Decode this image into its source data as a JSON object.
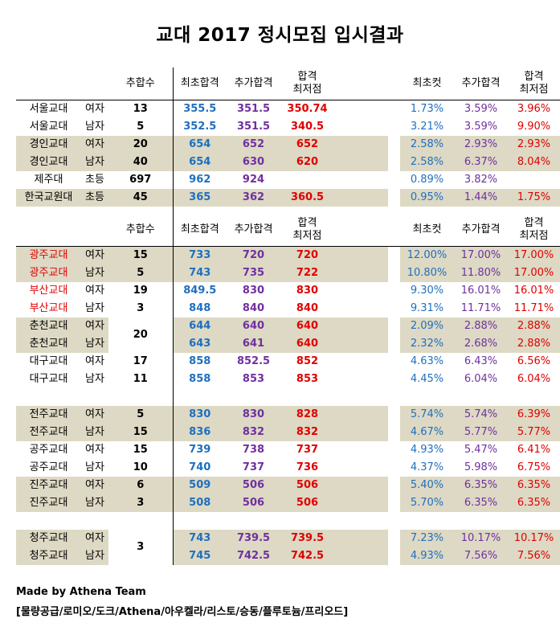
{
  "title": "교대 2017 정시모집 입시결과",
  "headers": {
    "count": "추합수",
    "first": "최초합격",
    "extra": "추가합격",
    "min_line1": "합격",
    "min_line2": "최저점",
    "cut_first": "최초컷",
    "cut_extra": "추가합격",
    "cut_min_line1": "합격",
    "cut_min_line2": "최저점"
  },
  "colors": {
    "blue": "#1f6fbf",
    "purple": "#7030a0",
    "red": "#e00000",
    "shade": "#ddd9c4"
  },
  "section1": [
    {
      "name": "서울교대",
      "kind": "여자",
      "count": "13",
      "first": "355.5",
      "extra": "351.5",
      "min": "350.74",
      "c1": "1.73%",
      "c2": "3.59%",
      "c3": "3.96%"
    },
    {
      "name": "서울교대",
      "kind": "남자",
      "count": "5",
      "first": "352.5",
      "extra": "351.5",
      "min": "340.5",
      "c1": "3.21%",
      "c2": "3.59%",
      "c3": "9.90%"
    },
    {
      "name": "경인교대",
      "kind": "여자",
      "count": "20",
      "first": "654",
      "extra": "652",
      "min": "652",
      "c1": "2.58%",
      "c2": "2.93%",
      "c3": "2.93%"
    },
    {
      "name": "경인교대",
      "kind": "남자",
      "count": "40",
      "first": "654",
      "extra": "630",
      "min": "620",
      "c1": "2.58%",
      "c2": "6.37%",
      "c3": "8.04%"
    },
    {
      "name": "제주대",
      "kind": "초등",
      "count": "697",
      "first": "962",
      "extra": "924",
      "min": "",
      "c1": "0.89%",
      "c2": "3.82%",
      "c3": ""
    },
    {
      "name": "한국교원대",
      "kind": "초등",
      "count": "45",
      "first": "365",
      "extra": "362",
      "min": "360.5",
      "c1": "0.95%",
      "c2": "1.44%",
      "c3": "1.75%"
    }
  ],
  "section2": [
    {
      "name": "광주교대",
      "kind": "여자",
      "count": "15",
      "first": "733",
      "extra": "720",
      "min": "720",
      "c1": "12.00%",
      "c2": "17.00%",
      "c3": "17.00%"
    },
    {
      "name": "광주교대",
      "kind": "남자",
      "count": "5",
      "first": "743",
      "extra": "735",
      "min": "722",
      "c1": "10.80%",
      "c2": "11.80%",
      "c3": "17.00%"
    },
    {
      "name": "부산교대",
      "kind": "여자",
      "count": "19",
      "first": "849.5",
      "extra": "830",
      "min": "830",
      "c1": "9.30%",
      "c2": "16.01%",
      "c3": "16.01%"
    },
    {
      "name": "부산교대",
      "kind": "남자",
      "count": "3",
      "first": "848",
      "extra": "840",
      "min": "840",
      "c1": "9.31%",
      "c2": "11.71%",
      "c3": "11.71%"
    },
    {
      "name": "춘천교대",
      "kind": "여자",
      "count": "20",
      "first": "644",
      "extra": "640",
      "min": "640",
      "c1": "2.09%",
      "c2": "2.88%",
      "c3": "2.88%"
    },
    {
      "name": "춘천교대",
      "kind": "남자",
      "count": "",
      "first": "643",
      "extra": "641",
      "min": "640",
      "c1": "2.32%",
      "c2": "2.68%",
      "c3": "2.88%"
    },
    {
      "name": "대구교대",
      "kind": "여자",
      "count": "17",
      "first": "858",
      "extra": "852.5",
      "min": "852",
      "c1": "4.63%",
      "c2": "6.43%",
      "c3": "6.56%"
    },
    {
      "name": "대구교대",
      "kind": "남자",
      "count": "11",
      "first": "858",
      "extra": "853",
      "min": "853",
      "c1": "4.45%",
      "c2": "6.04%",
      "c3": "6.04%"
    },
    {
      "name": "전주교대",
      "kind": "여자",
      "count": "5",
      "first": "830",
      "extra": "830",
      "min": "828",
      "c1": "5.74%",
      "c2": "5.74%",
      "c3": "6.39%"
    },
    {
      "name": "전주교대",
      "kind": "남자",
      "count": "15",
      "first": "836",
      "extra": "832",
      "min": "832",
      "c1": "4.67%",
      "c2": "5.77%",
      "c3": "5.77%"
    },
    {
      "name": "공주교대",
      "kind": "여자",
      "count": "15",
      "first": "739",
      "extra": "738",
      "min": "737",
      "c1": "4.93%",
      "c2": "5.47%",
      "c3": "6.41%"
    },
    {
      "name": "공주교대",
      "kind": "남자",
      "count": "10",
      "first": "740",
      "extra": "737",
      "min": "736",
      "c1": "4.37%",
      "c2": "5.98%",
      "c3": "6.75%"
    },
    {
      "name": "진주교대",
      "kind": "여자",
      "count": "6",
      "first": "509",
      "extra": "506",
      "min": "506",
      "c1": "5.40%",
      "c2": "6.35%",
      "c3": "6.35%"
    },
    {
      "name": "진주교대",
      "kind": "남자",
      "count": "3",
      "first": "508",
      "extra": "506",
      "min": "506",
      "c1": "5.70%",
      "c2": "6.35%",
      "c3": "6.35%"
    },
    {
      "name": "청주교대",
      "kind": "여자",
      "count": "3",
      "first": "743",
      "extra": "739.5",
      "min": "739.5",
      "c1": "7.23%",
      "c2": "10.17%",
      "c3": "10.17%"
    },
    {
      "name": "청주교대",
      "kind": "남자",
      "count": "",
      "first": "745",
      "extra": "742.5",
      "min": "742.5",
      "c1": "4.93%",
      "c2": "7.56%",
      "c3": "7.56%"
    }
  ],
  "footer": {
    "line1": "Made by Athena Team",
    "line2": "[물량공급/로미오/도크/Athena/아우켈라/리스토/승동/플루토늄/프리오드]"
  }
}
